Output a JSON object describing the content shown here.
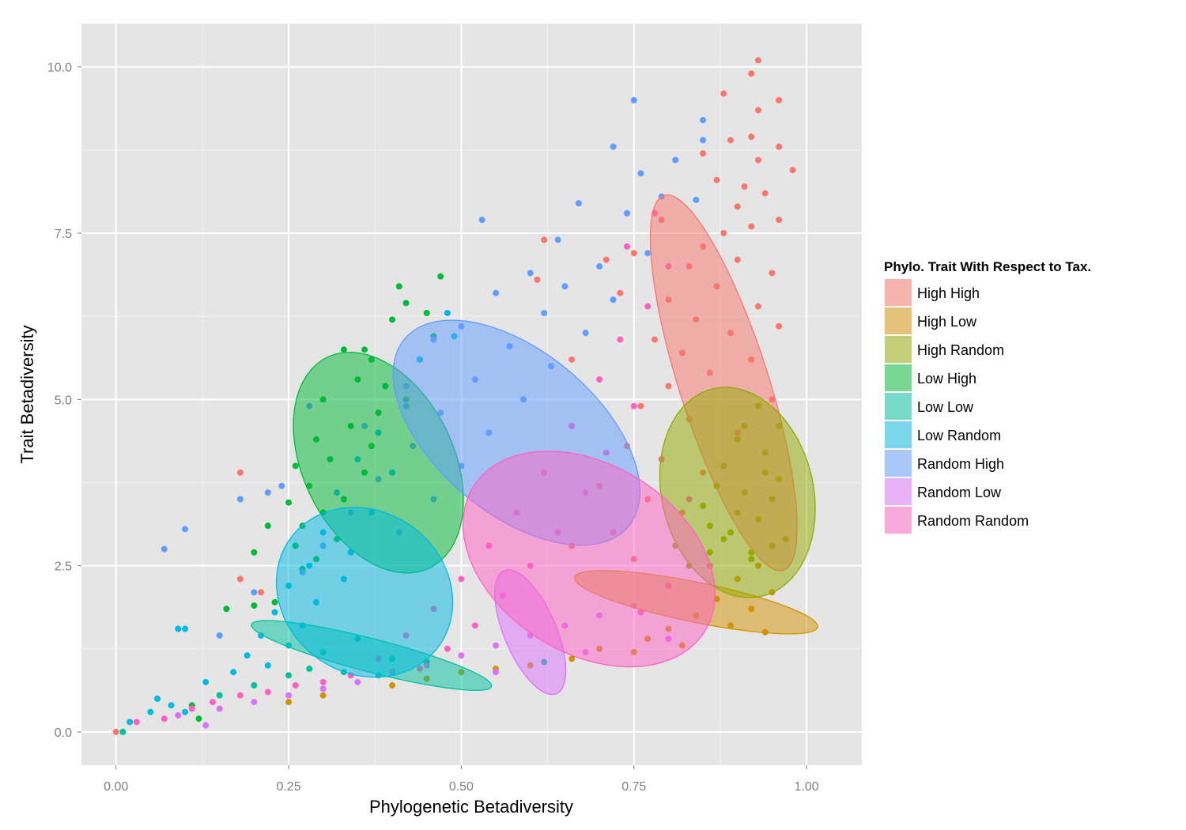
{
  "chart_data": {
    "type": "scatter",
    "title": "",
    "xlabel": "Phylogenetic Betadiversity",
    "ylabel": "Trait Betadiversity",
    "xlim": [
      -0.05,
      1.08
    ],
    "ylim": [
      -0.5,
      10.65
    ],
    "x_ticks": [
      0.0,
      0.25,
      0.5,
      0.75,
      1.0
    ],
    "x_tick_labels": [
      "0.00",
      "0.25",
      "0.50",
      "0.75",
      "1.00"
    ],
    "y_ticks": [
      0.0,
      2.5,
      5.0,
      7.5,
      10.0
    ],
    "y_tick_labels": [
      "0.0",
      "2.5",
      "5.0",
      "7.5",
      "10.0"
    ],
    "grid": true,
    "background": "#e5e5e5",
    "legend": {
      "title": "Phylo. Trait With Respect to Tax.",
      "position": "right"
    },
    "series": [
      {
        "name": "High High",
        "color": "#F8766D",
        "ellipse": {
          "cx": 0.88,
          "cy": 5.25,
          "rx": 0.065,
          "ry": 2.95,
          "angle_deg": 17
        },
        "points": [
          [
            0.93,
            10.1
          ],
          [
            0.92,
            9.9
          ],
          [
            0.88,
            9.6
          ],
          [
            0.96,
            9.5
          ],
          [
            0.93,
            9.35
          ],
          [
            0.92,
            8.95
          ],
          [
            0.89,
            8.9
          ],
          [
            0.96,
            8.8
          ],
          [
            0.85,
            8.7
          ],
          [
            0.98,
            8.45
          ],
          [
            0.93,
            8.6
          ],
          [
            0.91,
            8.2
          ],
          [
            0.87,
            8.3
          ],
          [
            0.94,
            8.1
          ],
          [
            0.9,
            7.9
          ],
          [
            0.96,
            7.7
          ],
          [
            0.92,
            7.6
          ],
          [
            0.88,
            7.5
          ],
          [
            0.85,
            7.3
          ],
          [
            0.79,
            7.7
          ],
          [
            0.83,
            7.0
          ],
          [
            0.9,
            7.1
          ],
          [
            0.95,
            6.9
          ],
          [
            0.87,
            6.7
          ],
          [
            0.8,
            6.5
          ],
          [
            0.93,
            6.4
          ],
          [
            0.84,
            6.2
          ],
          [
            0.89,
            6.0
          ],
          [
            0.96,
            6.1
          ],
          [
            0.78,
            5.9
          ],
          [
            0.82,
            5.7
          ],
          [
            0.92,
            5.6
          ],
          [
            0.86,
            5.4
          ],
          [
            0.8,
            5.2
          ],
          [
            0.95,
            5.0
          ],
          [
            0.76,
            4.9
          ],
          [
            0.83,
            4.7
          ],
          [
            0.9,
            4.5
          ],
          [
            0.74,
            4.3
          ],
          [
            0.79,
            4.1
          ],
          [
            0.85,
            3.9
          ],
          [
            0.7,
            3.7
          ],
          [
            0.77,
            3.5
          ],
          [
            0.82,
            3.3
          ],
          [
            0.72,
            3.0
          ],
          [
            0.66,
            2.8
          ],
          [
            0.75,
            2.6
          ],
          [
            0.62,
            7.4
          ],
          [
            0.61,
            6.8
          ],
          [
            0.71,
            7.1
          ],
          [
            0.75,
            7.2
          ],
          [
            0.73,
            6.6
          ],
          [
            0.66,
            5.6
          ],
          [
            0.18,
            3.9
          ],
          [
            0.18,
            2.3
          ],
          [
            0.21,
            2.1
          ],
          [
            0.0,
            0.0
          ]
        ]
      },
      {
        "name": "High Low",
        "color": "#D39200",
        "ellipse": {
          "cx": 0.84,
          "cy": 1.95,
          "rx": 0.18,
          "ry": 0.3,
          "angle_deg": -12
        },
        "points": [
          [
            0.93,
            2.5
          ],
          [
            0.9,
            2.3
          ],
          [
            0.95,
            2.1
          ],
          [
            0.87,
            2.0
          ],
          [
            0.92,
            1.85
          ],
          [
            0.84,
            1.75
          ],
          [
            0.89,
            1.6
          ],
          [
            0.8,
            1.55
          ],
          [
            0.94,
            1.5
          ],
          [
            0.77,
            1.4
          ],
          [
            0.82,
            1.3
          ],
          [
            0.7,
            1.25
          ],
          [
            0.75,
            1.2
          ],
          [
            0.66,
            1.1
          ],
          [
            0.6,
            1.0
          ],
          [
            0.55,
            0.95
          ],
          [
            0.5,
            0.9
          ],
          [
            0.45,
            0.8
          ],
          [
            0.4,
            0.7
          ],
          [
            0.3,
            0.55
          ],
          [
            0.25,
            0.45
          ]
        ]
      },
      {
        "name": "High Random",
        "color": "#93AA00",
        "ellipse": {
          "cx": 0.9,
          "cy": 3.6,
          "rx": 0.11,
          "ry": 1.6,
          "angle_deg": 12
        },
        "points": [
          [
            0.93,
            4.9
          ],
          [
            0.96,
            4.6
          ],
          [
            0.9,
            4.4
          ],
          [
            0.94,
            4.2
          ],
          [
            0.88,
            4.0
          ],
          [
            0.96,
            3.8
          ],
          [
            0.91,
            3.6
          ],
          [
            0.85,
            3.4
          ],
          [
            0.93,
            3.2
          ],
          [
            0.89,
            3.0
          ],
          [
            0.95,
            2.8
          ],
          [
            0.86,
            2.7
          ],
          [
            0.92,
            2.6
          ],
          [
            0.83,
            2.5
          ],
          [
            0.97,
            2.9
          ],
          [
            0.9,
            3.3
          ],
          [
            0.87,
            3.7
          ],
          [
            0.94,
            3.9
          ],
          [
            0.91,
            4.6
          ],
          [
            0.88,
            2.9
          ],
          [
            0.81,
            2.8
          ],
          [
            0.95,
            3.5
          ],
          [
            0.92,
            2.7
          ],
          [
            0.86,
            3.1
          ]
        ]
      },
      {
        "name": "Low High",
        "color": "#00BA38",
        "ellipse": {
          "cx": 0.38,
          "cy": 4.05,
          "rx": 0.11,
          "ry": 1.75,
          "angle_deg": 24
        },
        "points": [
          [
            0.47,
            6.85
          ],
          [
            0.41,
            6.7
          ],
          [
            0.42,
            6.45
          ],
          [
            0.45,
            6.3
          ],
          [
            0.4,
            6.2
          ],
          [
            0.46,
            5.95
          ],
          [
            0.33,
            5.75
          ],
          [
            0.36,
            5.75
          ],
          [
            0.37,
            5.6
          ],
          [
            0.44,
            5.6
          ],
          [
            0.35,
            5.3
          ],
          [
            0.39,
            5.2
          ],
          [
            0.42,
            5.0
          ],
          [
            0.3,
            5.0
          ],
          [
            0.38,
            4.8
          ],
          [
            0.34,
            4.6
          ],
          [
            0.29,
            4.4
          ],
          [
            0.37,
            4.3
          ],
          [
            0.31,
            4.1
          ],
          [
            0.26,
            4.0
          ],
          [
            0.36,
            3.9
          ],
          [
            0.28,
            3.7
          ],
          [
            0.33,
            3.5
          ],
          [
            0.25,
            3.45
          ],
          [
            0.3,
            3.3
          ],
          [
            0.27,
            3.1
          ],
          [
            0.32,
            2.9
          ],
          [
            0.26,
            2.8
          ],
          [
            0.29,
            2.6
          ],
          [
            0.22,
            3.1
          ],
          [
            0.2,
            2.7
          ],
          [
            0.27,
            2.45
          ],
          [
            0.23,
            1.95
          ],
          [
            0.2,
            1.9
          ],
          [
            0.16,
            1.85
          ],
          [
            0.12,
            0.2
          ],
          [
            0.11,
            0.4
          ]
        ]
      },
      {
        "name": "Low Low",
        "color": "#00C19F",
        "ellipse": {
          "cx": 0.37,
          "cy": 1.15,
          "rx": 0.18,
          "ry": 0.25,
          "angle_deg": -15
        },
        "points": [
          [
            0.35,
            1.4
          ],
          [
            0.3,
            1.2
          ],
          [
            0.4,
            1.1
          ],
          [
            0.28,
            0.95
          ],
          [
            0.33,
            0.9
          ],
          [
            0.25,
            0.85
          ],
          [
            0.45,
            1.05
          ],
          [
            0.38,
            0.85
          ],
          [
            0.2,
            0.7
          ],
          [
            0.62,
            1.05
          ],
          [
            0.15,
            0.55
          ],
          [
            0.01,
            0.0
          ]
        ]
      },
      {
        "name": "Low Random",
        "color": "#00B9E3",
        "ellipse": {
          "cx": 0.36,
          "cy": 2.1,
          "rx": 0.12,
          "ry": 1.35,
          "angle_deg": 45
        },
        "points": [
          [
            0.48,
            6.3
          ],
          [
            0.49,
            5.95
          ],
          [
            0.44,
            5.6
          ],
          [
            0.42,
            4.9
          ],
          [
            0.38,
            4.5
          ],
          [
            0.35,
            4.1
          ],
          [
            0.4,
            3.9
          ],
          [
            0.32,
            3.6
          ],
          [
            0.37,
            3.3
          ],
          [
            0.3,
            3.0
          ],
          [
            0.34,
            2.7
          ],
          [
            0.28,
            2.5
          ],
          [
            0.33,
            2.3
          ],
          [
            0.25,
            2.2
          ],
          [
            0.29,
            1.95
          ],
          [
            0.23,
            1.8
          ],
          [
            0.27,
            1.6
          ],
          [
            0.21,
            1.45
          ],
          [
            0.25,
            1.3
          ],
          [
            0.19,
            1.15
          ],
          [
            0.22,
            1.0
          ],
          [
            0.17,
            0.9
          ],
          [
            0.13,
            0.75
          ],
          [
            0.09,
            1.55
          ],
          [
            0.1,
            1.55
          ],
          [
            0.06,
            0.5
          ],
          [
            0.05,
            0.3
          ],
          [
            0.08,
            0.4
          ],
          [
            0.02,
            0.15
          ],
          [
            0.1,
            0.3
          ]
        ]
      },
      {
        "name": "Random High",
        "color": "#619CFF",
        "ellipse": {
          "cx": 0.58,
          "cy": 4.5,
          "rx": 0.12,
          "ry": 2.15,
          "angle_deg": 48
        },
        "points": [
          [
            0.75,
            9.5
          ],
          [
            0.85,
            9.2
          ],
          [
            0.85,
            8.9
          ],
          [
            0.72,
            8.8
          ],
          [
            0.81,
            8.6
          ],
          [
            0.76,
            8.4
          ],
          [
            0.79,
            8.05
          ],
          [
            0.67,
            7.95
          ],
          [
            0.84,
            8.0
          ],
          [
            0.53,
            7.7
          ],
          [
            0.74,
            7.8
          ],
          [
            0.64,
            7.4
          ],
          [
            0.77,
            7.2
          ],
          [
            0.7,
            7.0
          ],
          [
            0.6,
            6.9
          ],
          [
            0.65,
            6.7
          ],
          [
            0.55,
            6.6
          ],
          [
            0.72,
            6.5
          ],
          [
            0.62,
            6.3
          ],
          [
            0.5,
            6.1
          ],
          [
            0.68,
            6.0
          ],
          [
            0.57,
            5.8
          ],
          [
            0.46,
            5.9
          ],
          [
            0.63,
            5.5
          ],
          [
            0.52,
            5.3
          ],
          [
            0.42,
            5.2
          ],
          [
            0.59,
            5.0
          ],
          [
            0.47,
            4.8
          ],
          [
            0.36,
            4.6
          ],
          [
            0.54,
            4.5
          ],
          [
            0.43,
            4.3
          ],
          [
            0.28,
            4.9
          ],
          [
            0.5,
            4.0
          ],
          [
            0.38,
            3.8
          ],
          [
            0.24,
            3.7
          ],
          [
            0.46,
            3.5
          ],
          [
            0.34,
            3.3
          ],
          [
            0.22,
            3.6
          ],
          [
            0.41,
            3.0
          ],
          [
            0.3,
            2.8
          ],
          [
            0.18,
            3.5
          ],
          [
            0.27,
            2.4
          ],
          [
            0.2,
            2.1
          ],
          [
            0.1,
            3.05
          ],
          [
            0.07,
            2.75
          ],
          [
            0.15,
            1.45
          ]
        ]
      },
      {
        "name": "Random Low",
        "color": "#DB72FB",
        "ellipse": {
          "cx": 0.6,
          "cy": 1.5,
          "rx": 0.1,
          "ry": 0.38,
          "angle_deg": -68
        },
        "points": [
          [
            0.75,
            1.9
          ],
          [
            0.7,
            1.75
          ],
          [
            0.65,
            1.6
          ],
          [
            0.6,
            1.45
          ],
          [
            0.55,
            1.3
          ],
          [
            0.5,
            1.15
          ],
          [
            0.45,
            1.0
          ],
          [
            0.4,
            0.9
          ],
          [
            0.35,
            0.75
          ],
          [
            0.3,
            0.65
          ],
          [
            0.25,
            0.55
          ],
          [
            0.2,
            0.45
          ],
          [
            0.15,
            0.35
          ],
          [
            0.13,
            0.1
          ],
          [
            0.09,
            0.25
          ],
          [
            0.55,
            0.9
          ],
          [
            0.8,
            1.4
          ],
          [
            0.68,
            1.2
          ]
        ]
      },
      {
        "name": "Random Random",
        "color": "#FF61C3",
        "ellipse": {
          "cx": 0.685,
          "cy": 2.6,
          "rx": 0.14,
          "ry": 2.0,
          "angle_deg": 55
        },
        "points": [
          [
            0.78,
            7.8
          ],
          [
            0.74,
            7.3
          ],
          [
            0.8,
            7.0
          ],
          [
            0.77,
            6.4
          ],
          [
            0.73,
            5.9
          ],
          [
            0.7,
            5.3
          ],
          [
            0.75,
            4.9
          ],
          [
            0.66,
            4.6
          ],
          [
            0.71,
            4.2
          ],
          [
            0.62,
            3.9
          ],
          [
            0.68,
            3.6
          ],
          [
            0.58,
            3.3
          ],
          [
            0.64,
            3.0
          ],
          [
            0.54,
            2.8
          ],
          [
            0.6,
            2.5
          ],
          [
            0.5,
            2.3
          ],
          [
            0.56,
            2.05
          ],
          [
            0.46,
            1.85
          ],
          [
            0.52,
            1.6
          ],
          [
            0.42,
            1.45
          ],
          [
            0.48,
            1.25
          ],
          [
            0.38,
            1.1
          ],
          [
            0.44,
            0.95
          ],
          [
            0.34,
            0.85
          ],
          [
            0.3,
            0.75
          ],
          [
            0.26,
            0.7
          ],
          [
            0.22,
            0.6
          ],
          [
            0.18,
            0.55
          ],
          [
            0.14,
            0.45
          ],
          [
            0.11,
            0.35
          ],
          [
            0.07,
            0.2
          ],
          [
            0.03,
            0.15
          ],
          [
            0.83,
            3.5
          ],
          [
            0.86,
            2.5
          ],
          [
            0.8,
            2.2
          ],
          [
            0.76,
            1.8
          ]
        ]
      }
    ]
  }
}
